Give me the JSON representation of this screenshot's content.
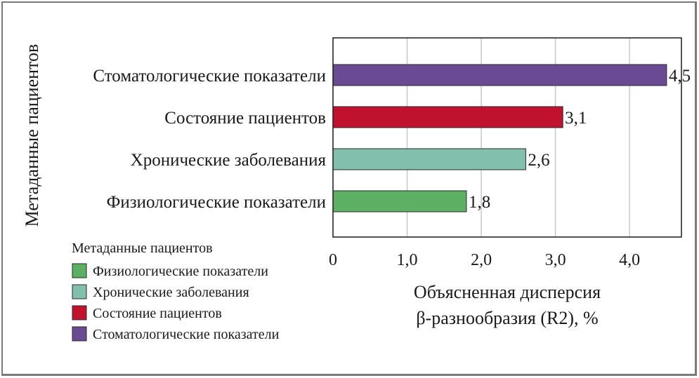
{
  "chart_data": {
    "type": "bar",
    "orientation": "horizontal",
    "categories": [
      "Стоматологические показатели",
      "Состояние пациентов",
      "Хронические заболевания",
      "Физиологические показатели"
    ],
    "values": [
      4.5,
      3.1,
      2.6,
      1.8
    ],
    "value_labels": [
      "4,5",
      "3,1",
      "2,6",
      "1,8"
    ],
    "colors": [
      "#6a4a93",
      "#c0112f",
      "#82bfad",
      "#5daf63"
    ],
    "xlim": [
      0,
      4.7
    ],
    "xticks": [
      0,
      1,
      2,
      3,
      4
    ],
    "xtick_labels": [
      "0",
      "1,0",
      "2,0",
      "3,0",
      "4,0"
    ],
    "xlabel_lines": [
      "Объясненная дисперсия",
      "β-разнообразия (R2), %"
    ],
    "ylabel": "Метаданные пациентов",
    "grid": "vertical",
    "legend": {
      "title": "Метаданные пациентов",
      "placement": "bottom-left",
      "items": [
        {
          "label": "Физиологические показатели",
          "color": "#5daf63"
        },
        {
          "label": "Хронические заболевания",
          "color": "#82bfad"
        },
        {
          "label": "Состояние пациентов",
          "color": "#c0112f"
        },
        {
          "label": "Стоматологические показатели",
          "color": "#6a4a93"
        }
      ]
    }
  }
}
